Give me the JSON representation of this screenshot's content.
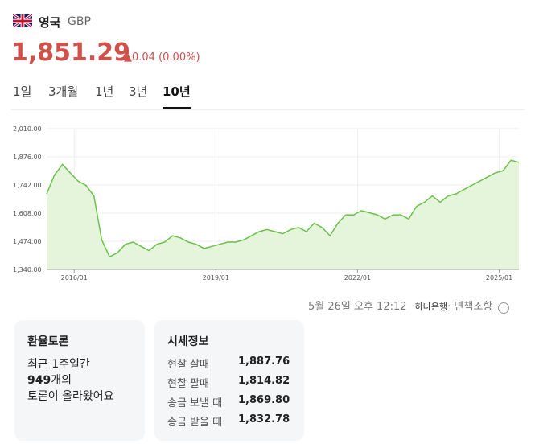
{
  "header": {
    "country": "영국",
    "currency": "GBP",
    "price": "1,851.29",
    "change": "▲0.04 (0.00%)"
  },
  "tabs": [
    "1일",
    "3개월",
    "1년",
    "3년",
    "10년"
  ],
  "chart_data": {
    "type": "line",
    "color": "#6cc04a",
    "fill": "#e4f5dc",
    "grid": true,
    "x": [
      "2015/06",
      "2015/08",
      "2015/10",
      "2015/12",
      "2016/02",
      "2016/04",
      "2016/06",
      "2016/08",
      "2016/10",
      "2016/12",
      "2017/02",
      "2017/04",
      "2017/06",
      "2017/08",
      "2017/10",
      "2017/12",
      "2018/02",
      "2018/04",
      "2018/06",
      "2018/08",
      "2018/10",
      "2018/12",
      "2019/02",
      "2019/04",
      "2019/06",
      "2019/08",
      "2019/10",
      "2019/12",
      "2020/02",
      "2020/04",
      "2020/06",
      "2020/08",
      "2020/10",
      "2020/12",
      "2021/02",
      "2021/04",
      "2021/06",
      "2021/08",
      "2021/10",
      "2021/12",
      "2022/02",
      "2022/04",
      "2022/06",
      "2022/08",
      "2022/10",
      "2022/12",
      "2023/02",
      "2023/04",
      "2023/06",
      "2023/08",
      "2023/10",
      "2023/12",
      "2024/02",
      "2024/04",
      "2024/06",
      "2024/08",
      "2024/10",
      "2024/12",
      "2025/02",
      "2025/04",
      "2025/06"
    ],
    "series": [
      {
        "name": "GBP",
        "values": [
          1700,
          1790,
          1840,
          1800,
          1760,
          1740,
          1690,
          1480,
          1400,
          1420,
          1460,
          1470,
          1450,
          1430,
          1460,
          1470,
          1500,
          1490,
          1470,
          1460,
          1440,
          1450,
          1460,
          1470,
          1470,
          1480,
          1500,
          1520,
          1530,
          1520,
          1510,
          1530,
          1540,
          1520,
          1560,
          1540,
          1500,
          1560,
          1600,
          1600,
          1620,
          1610,
          1600,
          1580,
          1600,
          1600,
          1580,
          1640,
          1660,
          1690,
          1660,
          1690,
          1700,
          1720,
          1740,
          1760,
          1780,
          1800,
          1810,
          1860,
          1850
        ]
      }
    ],
    "xlim": [
      "2015/06",
      "2025/06"
    ],
    "xticks": [
      "2016/01",
      "2019/01",
      "2022/01",
      "2025/01"
    ],
    "ylim": [
      1340,
      2010
    ],
    "yticks": [
      {
        "value": 1340,
        "label": "1,340.00"
      },
      {
        "value": 1474,
        "label": "1,474.00"
      },
      {
        "value": 1608,
        "label": "1,608.00"
      },
      {
        "value": 1742,
        "label": "1,742.00"
      },
      {
        "value": 1876,
        "label": "1,876.00"
      },
      {
        "value": 2010,
        "label": "2,010.00"
      }
    ]
  },
  "footer": {
    "time": "5월 26일 오후 12:12",
    "source": "하나은행",
    "disclaimer": "· 면책조항"
  },
  "discussion": {
    "title": "환율토론",
    "line1": "최근 1주일간",
    "count": "949",
    "count_suffix": "개의",
    "line3": "토론이 올라왔어요"
  },
  "quotes": {
    "title": "시세정보",
    "rows": [
      [
        "현찰 살때",
        "1,887.76"
      ],
      [
        "현찰 팔때",
        "1,814.82"
      ],
      [
        "송금 보낼 때",
        "1,869.80"
      ],
      [
        "송금 받을 때",
        "1,832.78"
      ]
    ]
  }
}
